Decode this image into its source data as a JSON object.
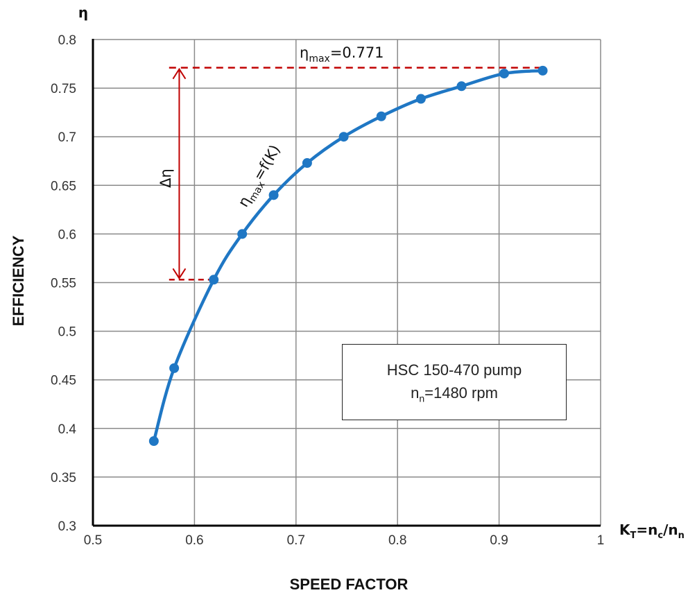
{
  "chart_data": {
    "type": "line",
    "title": "",
    "xlabel": "SPEED FACTOR",
    "ylabel": "EFFICIENCY",
    "x_symbol": {
      "base": "K",
      "sub": "T",
      "eq": "=n",
      "sub2": "c",
      "slash": "/n",
      "sub3": "n"
    },
    "y_symbol": "η",
    "xlim": [
      0.5,
      1.0
    ],
    "ylim": [
      0.3,
      0.8
    ],
    "x_ticks": [
      "0.5",
      "0.6",
      "0.7",
      "0.8",
      "0.9",
      "1"
    ],
    "y_ticks": [
      "0.3",
      "0.35",
      "0.4",
      "0.45",
      "0.5",
      "0.55",
      "0.6",
      "0.65",
      "0.7",
      "0.75",
      "0.8"
    ],
    "grid": true,
    "series": [
      {
        "name": "ηmax=f(K)",
        "color": "#1f77c4",
        "x": [
          0.56,
          0.58,
          0.619,
          0.647,
          0.678,
          0.711,
          0.747,
          0.784,
          0.823,
          0.863,
          0.905,
          0.943
        ],
        "y": [
          0.387,
          0.462,
          0.553,
          0.6,
          0.64,
          0.673,
          0.7,
          0.721,
          0.739,
          0.752,
          0.765,
          0.768
        ]
      }
    ],
    "annotations": {
      "eta_max": {
        "label": "η",
        "sub": "max",
        "value_text": "=0.771",
        "y": 0.771,
        "x_from": 0.575,
        "x_to": 0.943
      },
      "delta_eta": {
        "label": "Δη",
        "y_top": 0.771,
        "y_bottom": 0.553,
        "x": 0.585,
        "x_from": 0.575,
        "x_to": 0.619
      },
      "curve_label": {
        "label": "η",
        "sub": "max",
        "rest": "=f(K)"
      },
      "marker_color": "#c00000"
    },
    "legend_box": {
      "line1": "HSC 150-470 pump",
      "line2_base": "n",
      "line2_sub": "n",
      "line2_rest": "=1480 rpm"
    }
  }
}
